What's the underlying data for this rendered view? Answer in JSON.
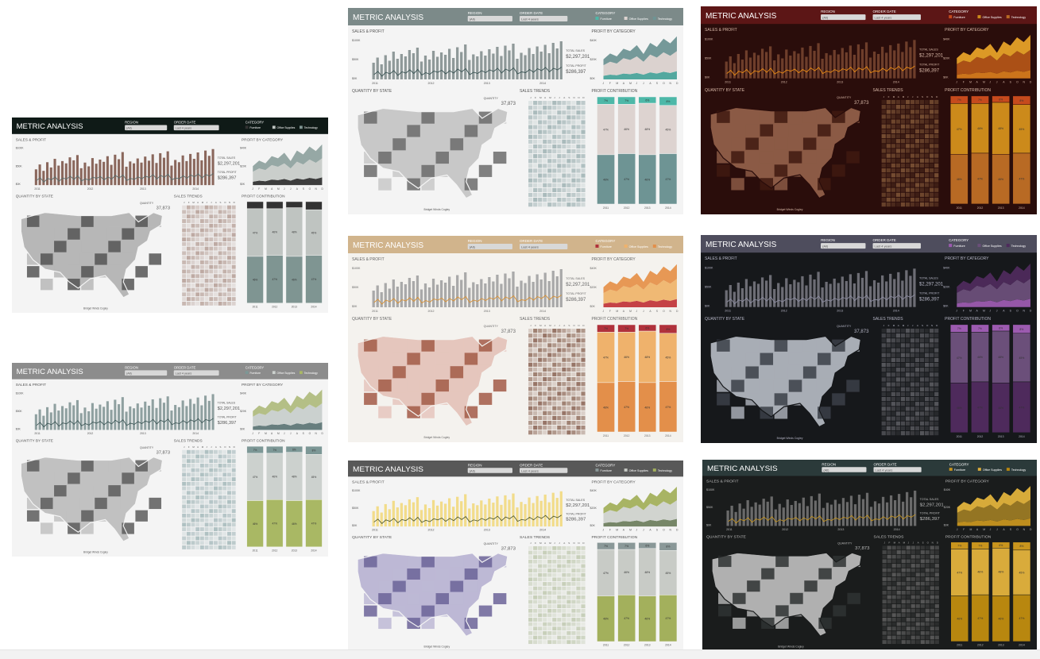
{
  "labels": {
    "title": "METRIC ANALYSIS",
    "region_label": "REGION",
    "region_value": "(All)",
    "order_date_label": "ORDER DATE",
    "order_date_value": "Last 4 years",
    "category_label": "CATEGORY",
    "legend": [
      "Furniture",
      "Office Supplies",
      "Technology"
    ],
    "sales_profit": "SALES & PROFIT",
    "profit_by_category": "PROFIT BY CATEGORY",
    "quantity_by_state": "QUANTITY BY STATE",
    "sales_trends": "SALES TRENDS",
    "profit_contribution": "PROFIT CONTRIBUTION",
    "total_sales_label": "TOTAL SALES",
    "total_sales": "$2,297,201",
    "total_profit_label": "TOTAL PROFIT",
    "total_profit": "$286,397",
    "quantity_label": "QUANTITY",
    "quantity": "37,873",
    "y_ticks": [
      "$100K",
      "$50K",
      "$0K"
    ],
    "cat_y_ticks": [
      "$40K",
      "$20K",
      "$0K"
    ],
    "x_years": [
      "2011",
      "2012",
      "2013",
      "2014"
    ],
    "months": [
      "J",
      "F",
      "M",
      "A",
      "M",
      "J",
      "J",
      "A",
      "S",
      "O",
      "N",
      "D"
    ],
    "pct_labels": [
      "7%",
      "47%",
      "46%"
    ],
    "credit": "Bridget Winds Cogley"
  },
  "themes": [
    {
      "bg": "#f4f4f4",
      "header": "#0f1a17",
      "headerText": "#ffffff",
      "text": "#555555",
      "bar": "#8a675c",
      "line": "#556b6a",
      "mapDark": "#555555",
      "mapLight": "#b7b7b7",
      "heat": "#b9a49c",
      "stack": [
        "#333333",
        "#bfc4c1",
        "#7f9592"
      ],
      "area": [
        "#333333",
        "#c7cbc8",
        "#90a3a0"
      ]
    },
    {
      "bg": "#f4f4f4",
      "header": "#8c8c8c",
      "headerText": "#ffffff",
      "text": "#555555",
      "bar": "#8fa0a0",
      "line": "#3b5555",
      "mapDark": "#5c5c5c",
      "mapLight": "#c1c1c1",
      "heat": "#a9bcbe",
      "stack": [
        "#7c9796",
        "#ccd1ce",
        "#a9b864"
      ],
      "area": [
        "#5f7777",
        "#c8cfcc",
        "#b0bc80"
      ]
    },
    {
      "bg": "#2a0d0b",
      "header": "#5c1616",
      "headerText": "#ffffff",
      "text": "#d9b9a8",
      "bar": "#6e3e2b",
      "line": "#e88a14",
      "mapDark": "#3f1a10",
      "mapLight": "#8b5a45",
      "heat": "#7b5235",
      "stack": [
        "#c64a1d",
        "#cc8a1b",
        "#b86a24"
      ],
      "area": [
        "#d57a1c",
        "#b25417",
        "#e6a128"
      ]
    },
    {
      "bg": "#f4f4f4",
      "header": "#7c8a89",
      "headerText": "#ffffff",
      "text": "#555555",
      "bar": "#8f9999",
      "line": "#3a5454",
      "mapDark": "#6b6b6b",
      "mapLight": "#c8c8c8",
      "heat": "#a3b6b7",
      "stack": [
        "#4db8a8",
        "#ddd3d0",
        "#6e9494"
      ],
      "area": [
        "#4aa39a",
        "#d9d0cc",
        "#6e9494"
      ]
    },
    {
      "bg": "#f4f2ee",
      "header": "#d1b48c",
      "headerText": "#ffffff",
      "text": "#666666",
      "bar": "#a9a9a9",
      "line": "#d89033",
      "mapDark": "#a25a47",
      "mapLight": "#e5c6bd",
      "heat": "#8f6a5a",
      "stack": [
        "#b0313b",
        "#efb26c",
        "#e38f4a"
      ],
      "area": [
        "#c2383c",
        "#efb56d",
        "#e6924c"
      ]
    },
    {
      "bg": "#16181b",
      "header": "#4e4d5d",
      "headerText": "#ffffff",
      "text": "#b7b7c7",
      "bar": "#6d6d75",
      "line": "#8c8ca0",
      "mapDark": "#3b4048",
      "mapLight": "#a8adb5",
      "heat": "#5a5a60",
      "stack": [
        "#9c5bb0",
        "#6b4f7a",
        "#4e2a5c"
      ],
      "area": [
        "#9c5bb0",
        "#6b4f7a",
        "#4e2a5c"
      ]
    },
    {
      "bg": "#f4f4f4",
      "header": "#585858",
      "headerText": "#ffffff",
      "text": "#555555",
      "bar": "#f2dc8a",
      "line": "#4f5a2f",
      "mapDark": "#6b6398",
      "mapLight": "#bdb8d5",
      "heat": "#c3ccb4",
      "stack": [
        "#8a9898",
        "#c8cbc6",
        "#a3b05c"
      ],
      "area": [
        "#6f7f5f",
        "#cfd2cc",
        "#a3b05c"
      ]
    },
    {
      "bg": "#1a1c1c",
      "header": "#2b3a3a",
      "headerText": "#ffffff",
      "text": "#bcbcbc",
      "bar": "#6a6a6a",
      "line": "#c7951f",
      "mapDark": "#2f3333",
      "mapLight": "#b0b0b0",
      "heat": "#5c5c5c",
      "stack": [
        "#c9951d",
        "#d9ab3b",
        "#b8870f"
      ],
      "area": [
        "#c7951f",
        "#9b7a24",
        "#e2b33c"
      ]
    }
  ],
  "sales_bars": [
    42,
    55,
    38,
    61,
    47,
    70,
    52,
    64,
    58,
    74,
    66,
    80,
    45,
    60,
    50,
    72,
    57,
    68,
    62,
    77,
    54,
    81,
    69,
    88,
    49,
    63,
    58,
    71,
    60,
    76,
    65,
    82,
    59,
    85,
    73,
    90,
    52,
    67,
    61,
    79,
    64,
    83,
    70,
    87,
    66,
    92,
    78,
    96
  ],
  "profit_line": [
    12,
    20,
    8,
    18,
    14,
    22,
    10,
    19,
    16,
    24,
    15,
    25,
    11,
    17,
    13,
    21,
    18,
    23,
    14,
    22,
    16,
    26,
    19,
    27,
    12,
    18,
    15,
    22,
    17,
    24,
    20,
    28,
    16,
    26,
    21,
    29,
    14,
    19,
    17,
    25,
    18,
    27,
    22,
    30,
    19,
    28,
    24,
    31
  ],
  "category_areas": [
    [
      6,
      8,
      7,
      10,
      9,
      11,
      8,
      12,
      10,
      13,
      11,
      14
    ],
    [
      18,
      22,
      20,
      26,
      24,
      28,
      22,
      30,
      27,
      33,
      29,
      34
    ],
    [
      10,
      14,
      12,
      16,
      15,
      19,
      13,
      20,
      18,
      23,
      21,
      25
    ]
  ],
  "contribution_pct": [
    [
      7,
      47,
      46
    ],
    [
      7,
      46,
      47
    ],
    [
      6,
      48,
      46
    ],
    [
      8,
      45,
      47
    ]
  ]
}
